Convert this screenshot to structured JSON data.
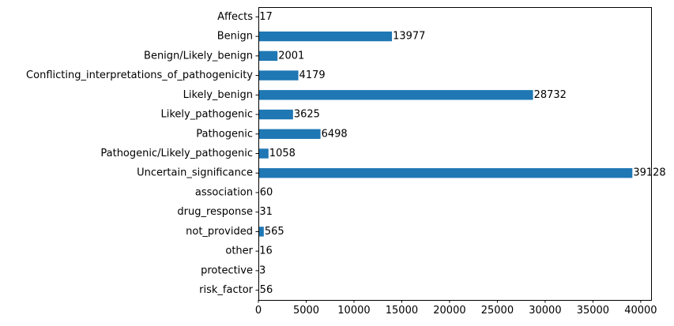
{
  "chart_data": {
    "type": "bar",
    "orientation": "horizontal",
    "title": "",
    "xlabel": "",
    "ylabel": "",
    "categories": [
      "Affects",
      "Benign",
      "Benign/Likely_benign",
      "Conflicting_interpretations_of_pathogenicity",
      "Likely_benign",
      "Likely_pathogenic",
      "Pathogenic",
      "Pathogenic/Likely_pathogenic",
      "Uncertain_significance",
      "association",
      "drug_response",
      "not_provided",
      "other",
      "protective",
      "risk_factor"
    ],
    "values": [
      17,
      13977,
      2001,
      4179,
      28732,
      3625,
      6498,
      1058,
      39128,
      60,
      31,
      565,
      16,
      3,
      56
    ],
    "value_labels": [
      "17",
      "13977",
      "2001",
      "4179",
      "28732",
      "3625",
      "6498",
      "1058",
      "39128",
      "60",
      "31",
      "565",
      "16",
      "3",
      "56"
    ],
    "xlim": [
      0,
      41084
    ],
    "x_ticks": [
      0,
      5000,
      10000,
      15000,
      20000,
      25000,
      30000,
      35000,
      40000
    ],
    "x_tick_labels": [
      "0",
      "5000",
      "10000",
      "15000",
      "20000",
      "25000",
      "30000",
      "35000",
      "40000"
    ],
    "grid": false,
    "legend": "none",
    "bar_color": "#1f77b4"
  }
}
